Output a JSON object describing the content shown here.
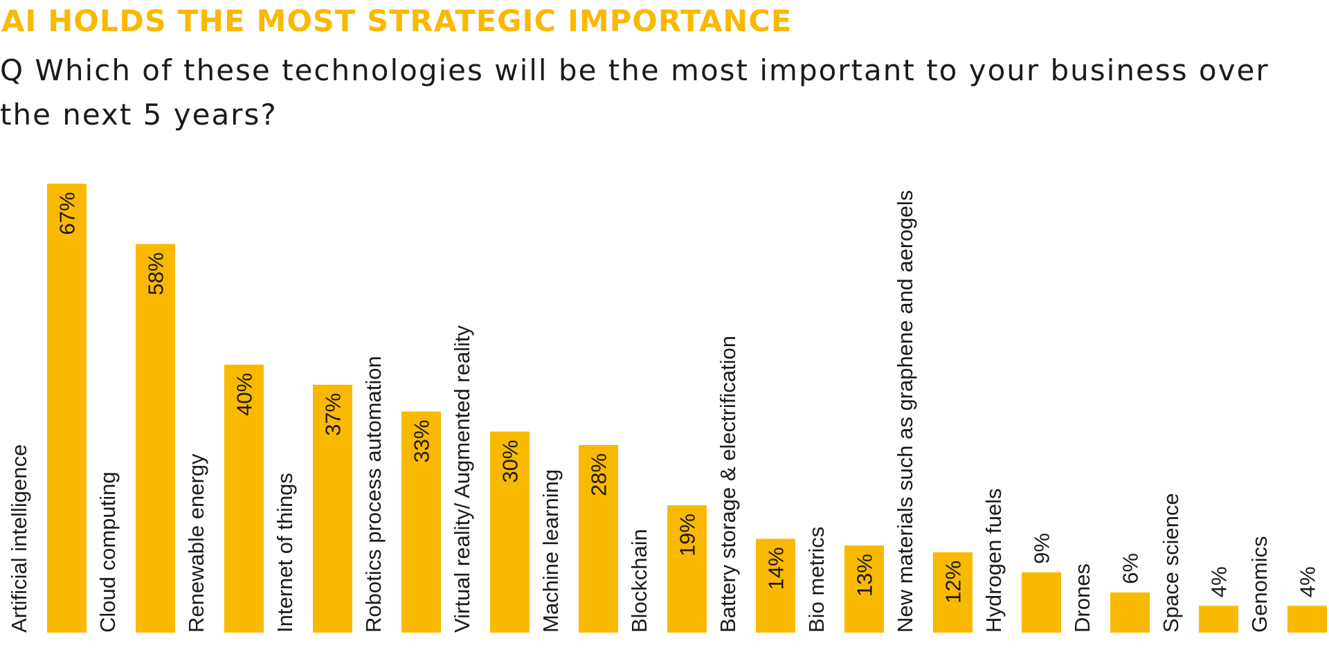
{
  "chart_data": {
    "type": "bar",
    "title": "AI HOLDS THE MOST STRATEGIC IMPORTANCE",
    "subtitle": "Q Which of these technologies will be the most important to your business over the next 5 years?",
    "categories": [
      "Artificial intelligence",
      "Cloud computing",
      "Renewable energy",
      "Internet of things",
      "Robotics process automation",
      "Virtual reality/ Augmented reality",
      "Machine learning",
      "Blockchain",
      "Battery storage & electrification",
      "Bio metrics",
      "New materials such as graphene and aerogels",
      "Hydrogen fuels",
      "Drones",
      "Space science",
      "Genomics"
    ],
    "values": [
      67,
      58,
      40,
      37,
      33,
      30,
      28,
      19,
      14,
      13,
      12,
      9,
      6,
      4,
      4
    ],
    "data_labels": [
      "67%",
      "58%",
      "40%",
      "37%",
      "33%",
      "30%",
      "28%",
      "19%",
      "14%",
      "13%",
      "12%",
      "9%",
      "6%",
      "4%",
      "4%"
    ],
    "unit": "%",
    "ylim": [
      0,
      70
    ],
    "xlabel": "",
    "ylabel": "",
    "grid": false,
    "legend": "none",
    "colors": {
      "bar": "#F9B900",
      "title": "#F9B900",
      "text": "#1a1a1a"
    }
  }
}
